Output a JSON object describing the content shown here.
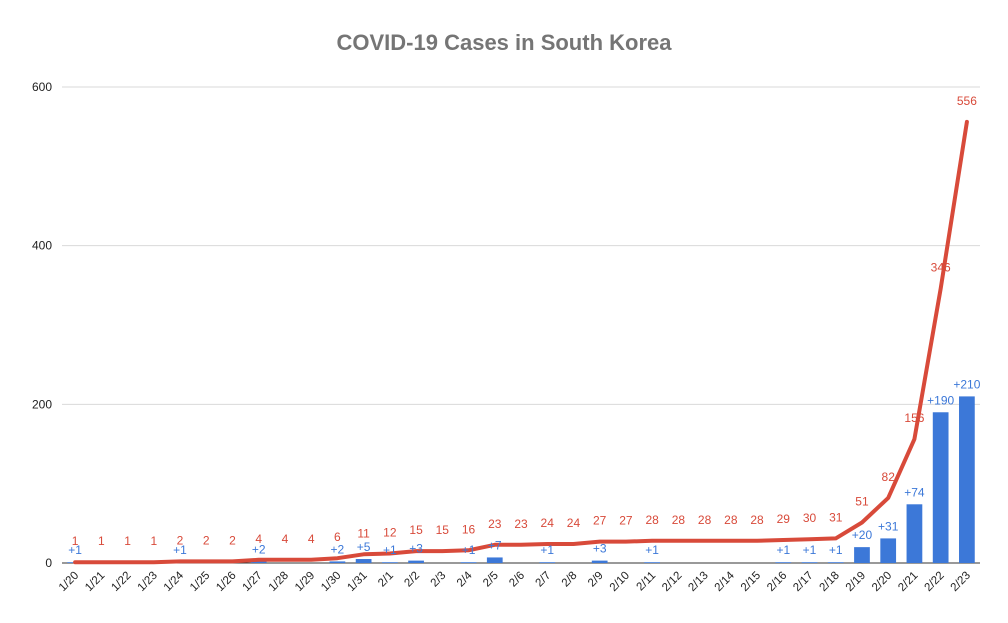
{
  "chart_data": {
    "type": "bar+line",
    "title": "COVID-19 Cases in South Korea",
    "xlabel": "",
    "ylabel": "",
    "ylim": [
      0,
      600
    ],
    "yticks": [
      0,
      200,
      400,
      600
    ],
    "grid": true,
    "legend": "none",
    "colors": {
      "bar": "#3c78d8",
      "line": "#d84a3a",
      "grid": "#d9d9d9",
      "title": "#757575"
    },
    "categories": [
      "1/20",
      "1/21",
      "1/22",
      "1/23",
      "1/24",
      "1/25",
      "1/26",
      "1/27",
      "1/28",
      "1/29",
      "1/30",
      "1/31",
      "2/1",
      "2/2",
      "2/3",
      "2/4",
      "2/5",
      "2/6",
      "2/7",
      "2/8",
      "2/9",
      "2/10",
      "2/11",
      "2/12",
      "2/13",
      "2/14",
      "2/15",
      "2/16",
      "2/17",
      "2/18",
      "2/19",
      "2/20",
      "2/21",
      "2/22",
      "2/23"
    ],
    "series": [
      {
        "type": "bar",
        "values": [
          1,
          0,
          0,
          0,
          1,
          0,
          0,
          2,
          0,
          0,
          2,
          5,
          1,
          3,
          0,
          1,
          7,
          0,
          1,
          0,
          3,
          0,
          1,
          0,
          0,
          0,
          0,
          1,
          1,
          1,
          20,
          31,
          74,
          190,
          210
        ],
        "labels": [
          "+1",
          "",
          "",
          "",
          "+1",
          "",
          "",
          "+2",
          "",
          "",
          "+2",
          "+5",
          "+1",
          "+3",
          "",
          "+1",
          "+7",
          "",
          "+1",
          "",
          "+3",
          "",
          "+1",
          "",
          "",
          "",
          "",
          "+1",
          "+1",
          "+1",
          "+20",
          "+31",
          "+74",
          "+190",
          "+210"
        ]
      },
      {
        "type": "line",
        "values": [
          1,
          1,
          1,
          1,
          2,
          2,
          2,
          4,
          4,
          4,
          6,
          11,
          12,
          15,
          15,
          16,
          23,
          23,
          24,
          24,
          27,
          27,
          28,
          28,
          28,
          28,
          28,
          29,
          30,
          31,
          51,
          82,
          156,
          346,
          556
        ],
        "labels": [
          "1",
          "1",
          "1",
          "1",
          "2",
          "2",
          "2",
          "4",
          "4",
          "4",
          "6",
          "11",
          "12",
          "15",
          "15",
          "16",
          "23",
          "23",
          "24",
          "24",
          "27",
          "27",
          "28",
          "28",
          "28",
          "28",
          "28",
          "29",
          "30",
          "31",
          "51",
          "82",
          "156",
          "346",
          "556"
        ]
      }
    ]
  }
}
